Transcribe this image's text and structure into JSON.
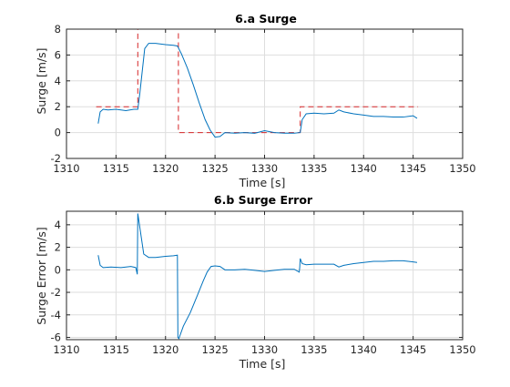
{
  "colors": {
    "measured": "#0072bd",
    "reference": "#d62728",
    "grid": "#dedede",
    "axis": "#262626",
    "background": "#ffffff"
  },
  "chart_data": [
    {
      "type": "line",
      "title": "6.a Surge",
      "xlabel": "Time [s]",
      "ylabel": "Surge [m/s]",
      "xlim": [
        1310,
        1350
      ],
      "ylim": [
        -2,
        8
      ],
      "xticks": [
        1310,
        1315,
        1320,
        1325,
        1330,
        1335,
        1340,
        1345,
        1350
      ],
      "yticks": [
        -2,
        0,
        2,
        4,
        6,
        8
      ],
      "xtick_labels": [
        "1310",
        "1315",
        "1320",
        "1325",
        "1330",
        "1335",
        "1340",
        "1345",
        "1350"
      ],
      "ytick_labels": [
        "-2",
        "0",
        "2",
        "4",
        "6",
        "8"
      ],
      "grid": true,
      "series": [
        {
          "style": "dashed",
          "color": "#d62728",
          "x": [
            1313.0,
            1317.2,
            1317.2,
            1321.3,
            1321.3,
            1333.6,
            1333.6,
            1345.5
          ],
          "y": [
            2.0,
            2.0,
            8.0,
            8.0,
            0.0,
            0.0,
            2.0,
            2.0
          ]
        },
        {
          "style": "solid",
          "color": "#0072bd",
          "x": [
            1313.2,
            1313.4,
            1313.7,
            1314.2,
            1315.0,
            1316.0,
            1316.8,
            1317.2,
            1317.4,
            1317.9,
            1318.3,
            1319.0,
            1320.0,
            1320.8,
            1321.2,
            1321.6,
            1322.2,
            1322.8,
            1323.4,
            1324.0,
            1324.5,
            1325.0,
            1325.5,
            1326.0,
            1327.0,
            1328.0,
            1329.0,
            1330.0,
            1331.0,
            1332.0,
            1333.0,
            1333.6,
            1333.8,
            1334.2,
            1335.0,
            1336.0,
            1337.0,
            1337.5,
            1338.0,
            1339.0,
            1340.0,
            1341.0,
            1342.0,
            1343.0,
            1344.0,
            1345.0,
            1345.4
          ],
          "y": [
            0.7,
            1.6,
            1.8,
            1.75,
            1.8,
            1.7,
            1.8,
            1.8,
            3.0,
            6.5,
            6.9,
            6.9,
            6.8,
            6.75,
            6.7,
            6.1,
            5.0,
            3.7,
            2.3,
            1.0,
            0.2,
            -0.35,
            -0.3,
            0.0,
            -0.05,
            0.0,
            -0.05,
            0.15,
            0.0,
            -0.05,
            -0.05,
            0.0,
            1.0,
            1.45,
            1.5,
            1.45,
            1.5,
            1.75,
            1.6,
            1.45,
            1.35,
            1.25,
            1.25,
            1.2,
            1.2,
            1.3,
            1.1
          ]
        }
      ]
    },
    {
      "type": "line",
      "title": "6.b Surge Error",
      "xlabel": "Time [s]",
      "ylabel": "Surge Error [m/s]",
      "xlim": [
        1310,
        1350
      ],
      "ylim": [
        -6.2,
        5.2
      ],
      "xticks": [
        1310,
        1315,
        1320,
        1325,
        1330,
        1335,
        1340,
        1345,
        1350
      ],
      "yticks": [
        -6,
        -4,
        -2,
        0,
        2,
        4
      ],
      "xtick_labels": [
        "1310",
        "1315",
        "1320",
        "1325",
        "1330",
        "1335",
        "1340",
        "1345",
        "1350"
      ],
      "ytick_labels": [
        "-6",
        "-4",
        "-2",
        "0",
        "2",
        "4"
      ],
      "grid": true,
      "series": [
        {
          "style": "solid",
          "color": "#0072bd",
          "x": [
            1313.2,
            1313.4,
            1313.7,
            1314.5,
            1315.5,
            1316.5,
            1317.0,
            1317.15,
            1317.2,
            1317.4,
            1317.8,
            1318.3,
            1319.0,
            1320.0,
            1320.8,
            1321.2,
            1321.25,
            1321.35,
            1321.8,
            1322.5,
            1323.2,
            1323.8,
            1324.2,
            1324.6,
            1325.0,
            1325.5,
            1326.0,
            1327.0,
            1328.0,
            1329.0,
            1330.0,
            1331.0,
            1332.0,
            1333.0,
            1333.5,
            1333.55,
            1333.6,
            1333.8,
            1334.2,
            1335.0,
            1336.0,
            1337.0,
            1337.5,
            1338.0,
            1339.0,
            1340.0,
            1341.0,
            1342.0,
            1343.0,
            1344.0,
            1345.0,
            1345.4
          ],
          "y": [
            1.3,
            0.4,
            0.2,
            0.25,
            0.2,
            0.3,
            0.2,
            -0.4,
            5.0,
            3.8,
            1.4,
            1.1,
            1.1,
            1.2,
            1.25,
            1.3,
            -6.0,
            -6.1,
            -5.0,
            -3.8,
            -2.3,
            -1.0,
            -0.2,
            0.3,
            0.35,
            0.3,
            0.0,
            0.0,
            0.05,
            -0.05,
            -0.15,
            -0.05,
            0.05,
            0.05,
            -0.2,
            0.2,
            1.0,
            0.55,
            0.45,
            0.5,
            0.5,
            0.5,
            0.25,
            0.4,
            0.55,
            0.65,
            0.75,
            0.75,
            0.8,
            0.8,
            0.7,
            0.65
          ]
        }
      ]
    }
  ]
}
